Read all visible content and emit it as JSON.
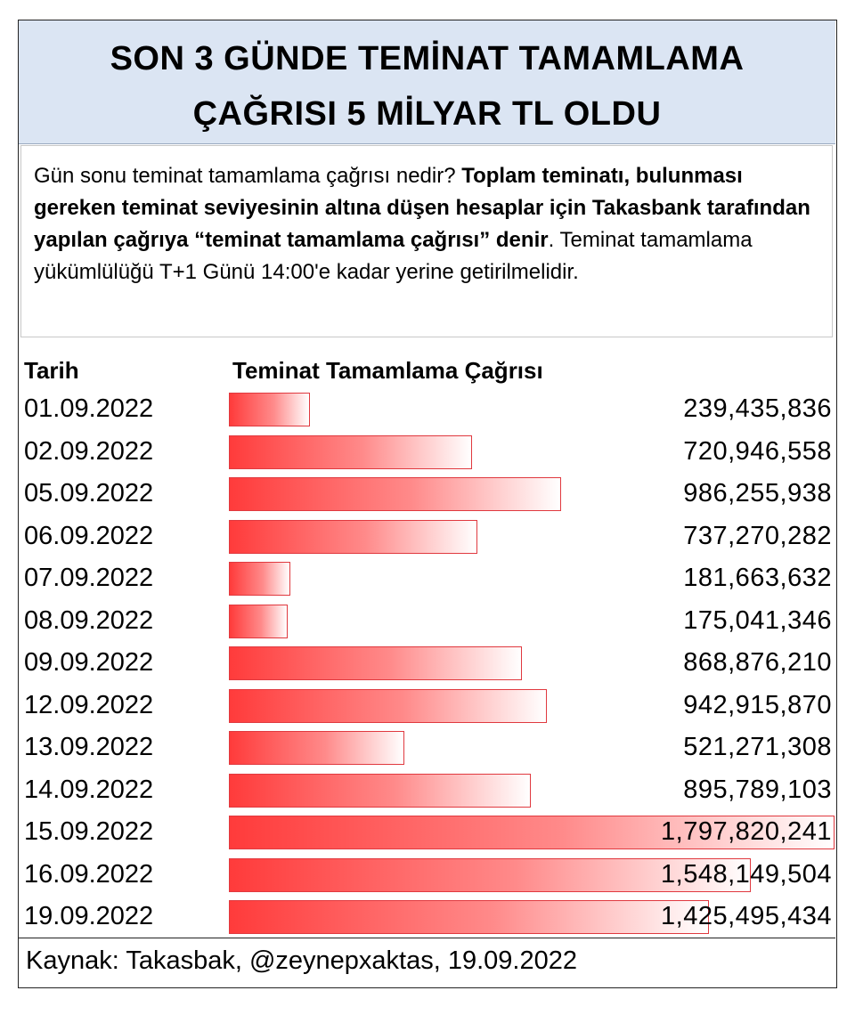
{
  "title": {
    "line1": "SON 3 GÜNDE TEMİNAT TAMAMLAMA",
    "line2": "ÇAĞRISI 5 MİLYAR TL OLDU"
  },
  "description": {
    "question": "Gün sonu teminat tamamlama çağrısı nedir? ",
    "bold_definition": "Toplam teminatı, bulunması gereken teminat seviyesinin altına düşen hesaplar için Takasbank tarafından yapılan çağrıya “teminat tamamlama çağrısı” denir",
    "rest": ". Teminat tamamlama yükümlülüğü T+1 Günü 14:00'e kadar yerine getirilmelidir."
  },
  "table": {
    "date_header": "Tarih",
    "value_header": "Teminat Tamamlama Çağrısı"
  },
  "chart_data": {
    "type": "bar",
    "categories": [
      "01.09.2022",
      "02.09.2022",
      "05.09.2022",
      "06.09.2022",
      "07.09.2022",
      "08.09.2022",
      "09.09.2022",
      "12.09.2022",
      "13.09.2022",
      "14.09.2022",
      "15.09.2022",
      "16.09.2022",
      "19.09.2022"
    ],
    "values": [
      239435836,
      720946558,
      986255938,
      737270282,
      181663632,
      175041346,
      868876210,
      942915870,
      521271308,
      895789103,
      1797820241,
      1548149504,
      1425495434
    ],
    "labels": [
      "239,435,836",
      "720,946,558",
      "986,255,938",
      "737,270,282",
      "181,663,632",
      "175,041,346",
      "868,876,210",
      "942,915,870",
      "521,271,308",
      "895,789,103",
      "1,797,820,241",
      "1,548,149,504",
      "1,425,495,434"
    ],
    "orientation": "horizontal",
    "bar_color": "#ff3b3b"
  },
  "footer": {
    "source": "Kaynak: Takasbak, @zeynepxaktas, 19.09.2022"
  }
}
